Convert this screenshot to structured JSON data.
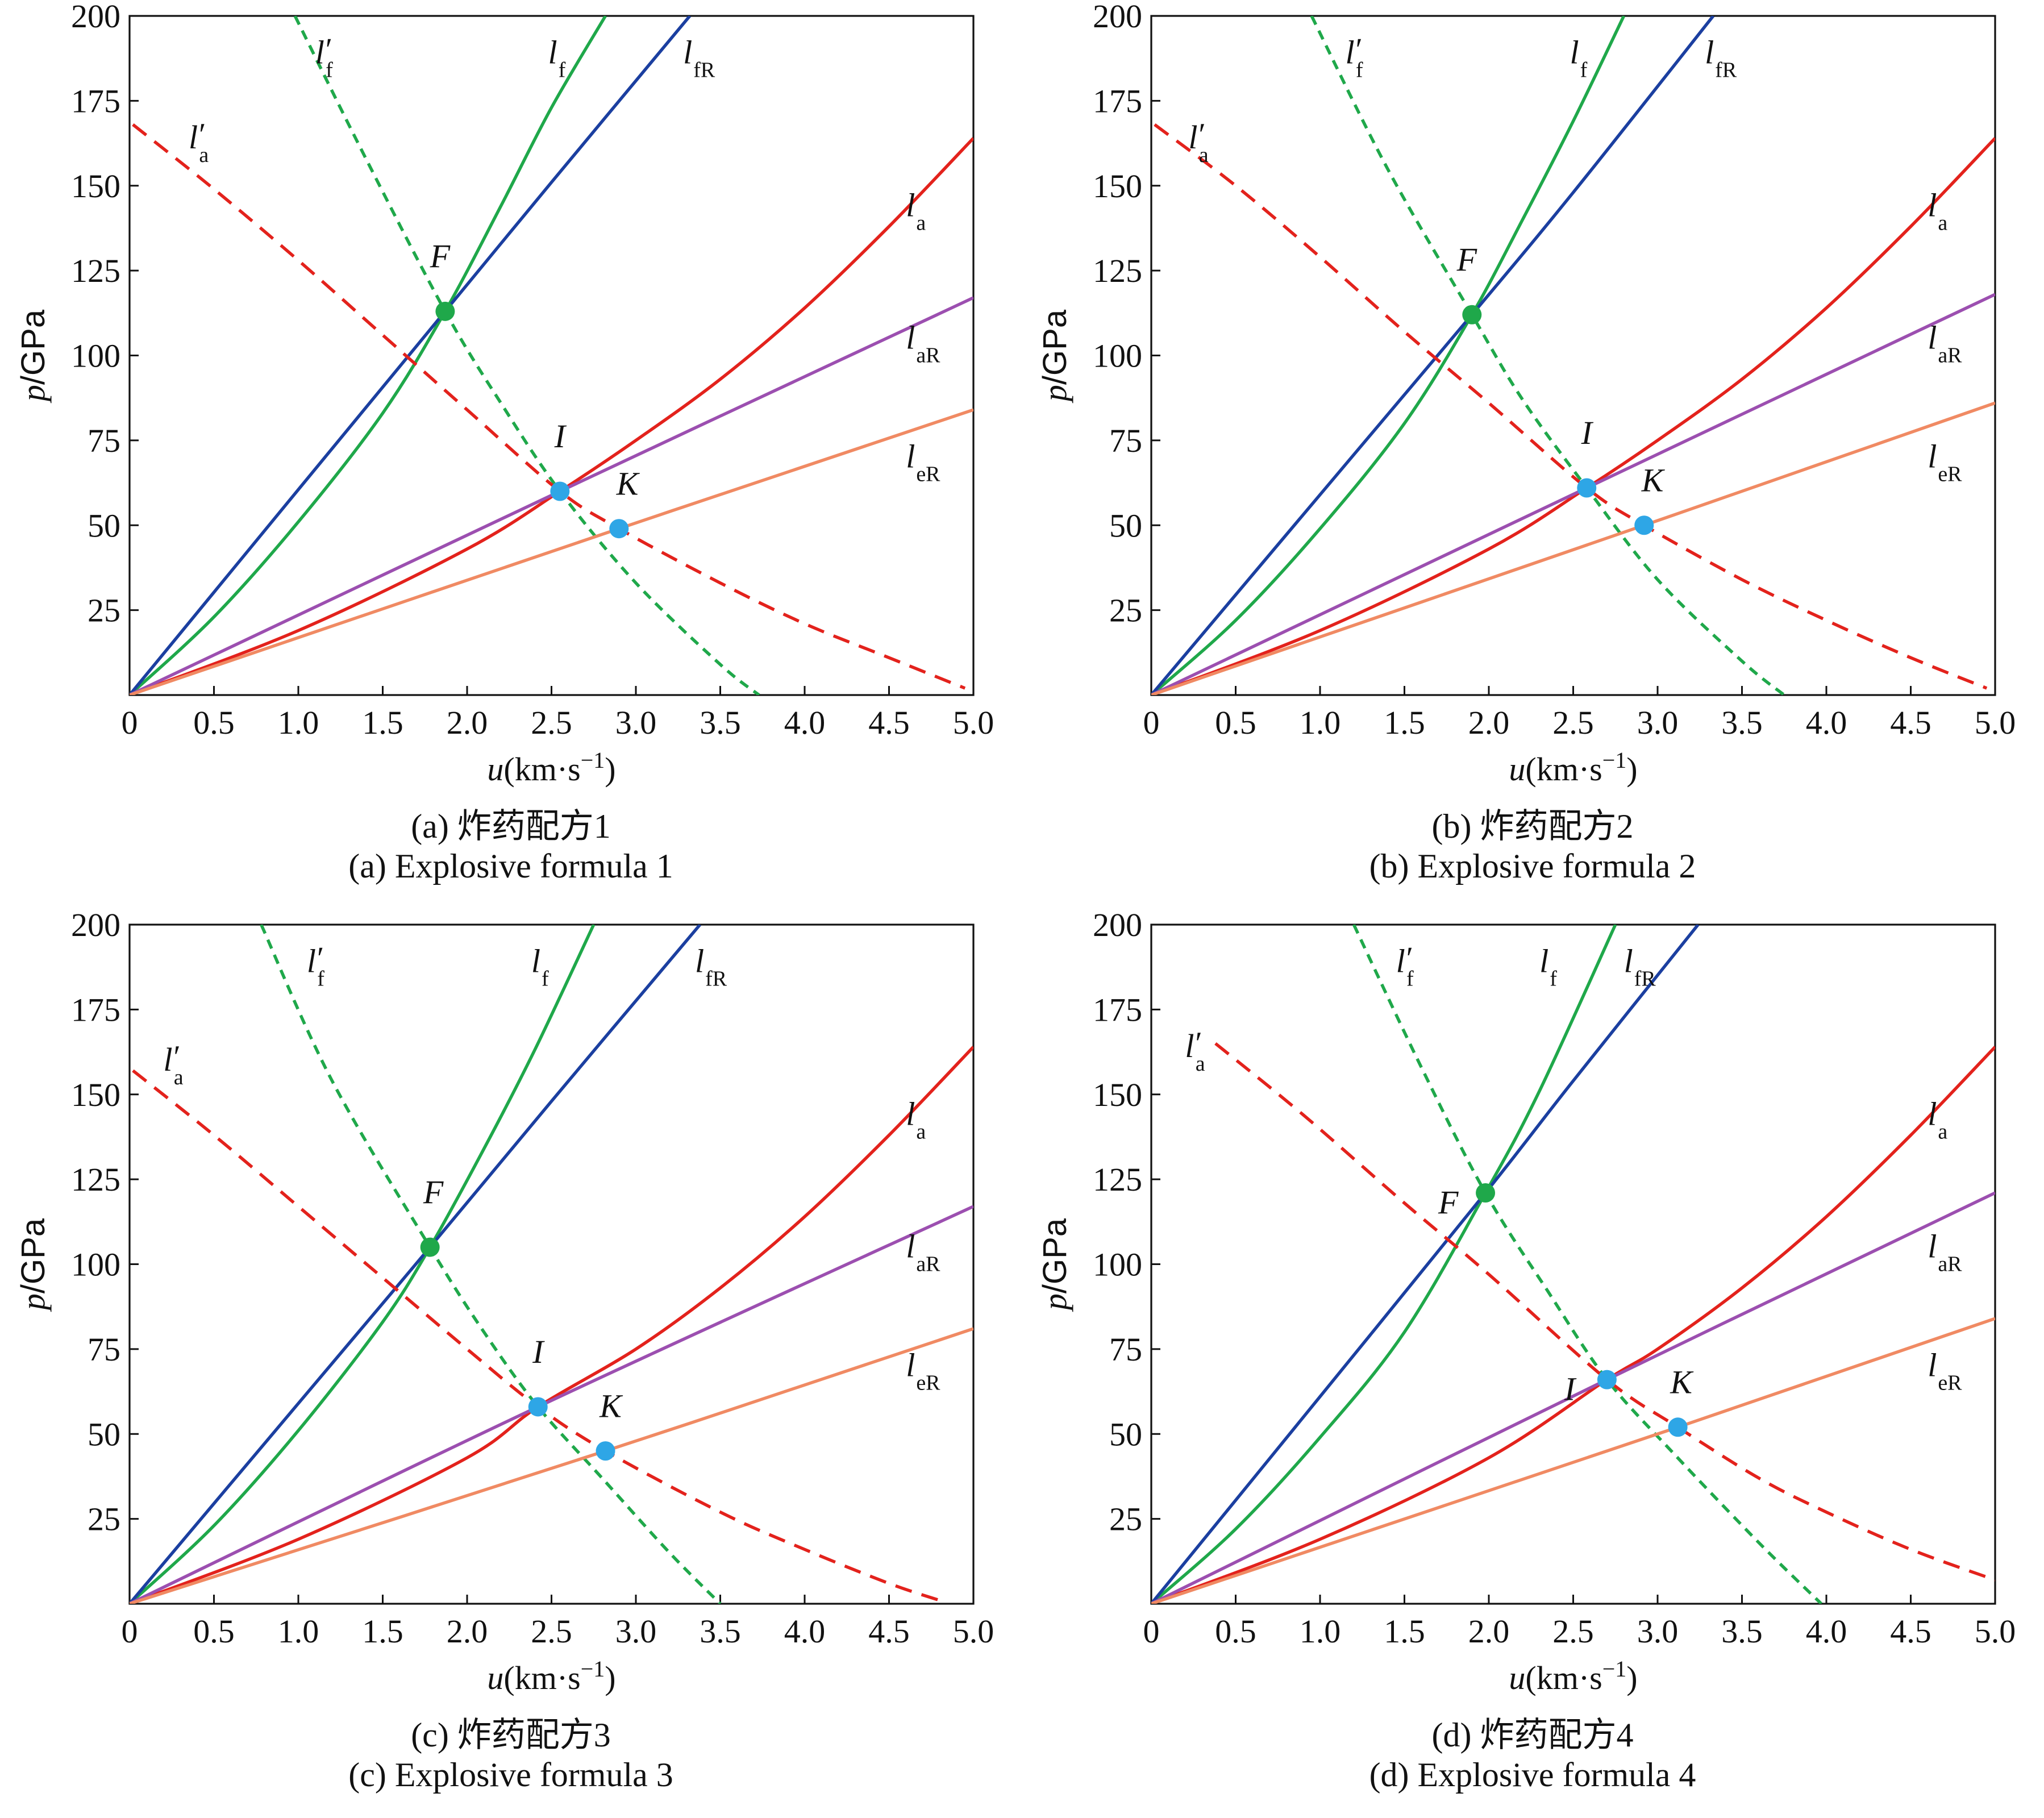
{
  "caption_prefixes": [
    "(a)",
    "(b)",
    "(c)",
    "(d)"
  ],
  "colors": {
    "lf": "#1fa84a",
    "lf_prime": "#1fa84a",
    "lfR": "#1b3fa0",
    "la": "#e3221c",
    "la_prime": "#e3221c",
    "laR": "#9c4fb0",
    "leR": "#f08a63",
    "F_point": "#1fa84a",
    "IK_point": "#2ea6e6"
  },
  "chart_data": [
    {
      "type": "line",
      "caption_cn": "(a) 炸药配方1",
      "caption_en": "(a) Explosive formula 1",
      "xlabel": "u(km·s⁻¹)",
      "xlabel_var": "u",
      "xlabel_unit": "(km·s",
      "xlabel_exp": "−1",
      "ylabel": "p/GPa",
      "ylabel_var": "p",
      "ylabel_unit": "/GPa",
      "xlim": [
        0,
        5.0
      ],
      "ylim": [
        0,
        200
      ],
      "x_ticks": [
        "0",
        "0.5",
        "1.0",
        "1.5",
        "2.0",
        "2.5",
        "3.0",
        "3.5",
        "4.0",
        "4.5",
        "5.0"
      ],
      "y_ticks": [
        "25",
        "50",
        "75",
        "100",
        "125",
        "150",
        "175",
        "200"
      ],
      "grid": false,
      "series": [
        {
          "name": "lf",
          "label_base": "l",
          "label_sub": "f",
          "style": "solid",
          "x": [
            0,
            0.5,
            1.0,
            1.5,
            1.87,
            2.2,
            2.5,
            2.82
          ],
          "y": [
            0,
            23,
            51,
            83,
            113,
            144,
            173,
            200
          ]
        },
        {
          "name": "lfR",
          "label_base": "l",
          "label_sub": "fR",
          "style": "solid",
          "x": [
            0,
            1.0,
            1.87,
            2.5,
            3.32
          ],
          "y": [
            0,
            60.5,
            113,
            151,
            200
          ]
        },
        {
          "name": "lf'",
          "label_base": "l",
          "label_sub": "f",
          "prime": true,
          "style": "dashed",
          "x": [
            0.98,
            1.4,
            1.87,
            2.2,
            2.55,
            3.0,
            3.5,
            3.73
          ],
          "y": [
            200,
            158,
            113,
            86,
            60,
            33,
            9,
            0
          ]
        },
        {
          "name": "la",
          "label_base": "l",
          "label_sub": "a",
          "style": "solid",
          "x": [
            0,
            1.0,
            2.0,
            2.55,
            3.0,
            3.5,
            4.0,
            4.5,
            5.0
          ],
          "y": [
            0,
            19,
            43,
            60,
            75,
            93,
            114,
            138,
            164
          ]
        },
        {
          "name": "la'",
          "label_base": "l",
          "label_sub": "a",
          "prime": true,
          "style": "dashed",
          "x": [
            0.02,
            0.5,
            1.0,
            1.5,
            2.0,
            2.55,
            2.9,
            3.5,
            4.0,
            4.5,
            4.95
          ],
          "y": [
            168,
            149,
            128,
            106,
            84,
            60,
            49,
            33,
            21,
            11,
            2
          ]
        },
        {
          "name": "laR",
          "label_base": "l",
          "label_sub": "aR",
          "style": "solid",
          "x": [
            0,
            2.55,
            5.0
          ],
          "y": [
            0,
            60,
            117
          ]
        },
        {
          "name": "leR",
          "label_base": "l",
          "label_sub": "eR",
          "style": "solid",
          "x": [
            0,
            2.9,
            5.0
          ],
          "y": [
            0,
            49,
            84
          ]
        }
      ],
      "series_label_positions": [
        {
          "series": "lf'",
          "x": 1.1,
          "y": 186
        },
        {
          "series": "lf",
          "x": 2.48,
          "y": 186
        },
        {
          "series": "lfR",
          "x": 3.28,
          "y": 186
        },
        {
          "series": "la'",
          "x": 0.35,
          "y": 161
        },
        {
          "series": "la",
          "x": 4.6,
          "y": 141
        },
        {
          "series": "laR",
          "x": 4.6,
          "y": 102
        },
        {
          "series": "leR",
          "x": 4.6,
          "y": 67
        }
      ],
      "points": [
        {
          "label": "F",
          "x": 1.87,
          "y": 113,
          "color": "F_point",
          "label_dx": -0.03,
          "label_dy": 13
        },
        {
          "label": "I",
          "x": 2.55,
          "y": 60,
          "color": "IK_point",
          "label_dx": 0.0,
          "label_dy": 13
        },
        {
          "label": "K",
          "x": 2.9,
          "y": 49,
          "color": "IK_point",
          "label_dx": 0.05,
          "label_dy": 10
        }
      ]
    },
    {
      "type": "line",
      "caption_cn": "(b) 炸药配方2",
      "caption_en": "(b) Explosive formula 2",
      "xlabel": "u(km·s⁻¹)",
      "xlabel_var": "u",
      "xlabel_unit": "(km·s",
      "xlabel_exp": "−1",
      "ylabel": "p/GPa",
      "ylabel_var": "p",
      "ylabel_unit": "/GPa",
      "xlim": [
        0,
        5.0
      ],
      "ylim": [
        0,
        200
      ],
      "x_ticks": [
        "0",
        "0.5",
        "1.0",
        "1.5",
        "2.0",
        "2.5",
        "3.0",
        "3.5",
        "4.0",
        "4.5",
        "5.0"
      ],
      "y_ticks": [
        "25",
        "50",
        "75",
        "100",
        "125",
        "150",
        "175",
        "200"
      ],
      "grid": false,
      "series": [
        {
          "name": "lf",
          "label_base": "l",
          "label_sub": "f",
          "style": "solid",
          "x": [
            0,
            0.5,
            1.0,
            1.5,
            1.9,
            2.2,
            2.5,
            2.8
          ],
          "y": [
            0,
            22,
            49,
            80,
            112,
            140,
            169,
            200
          ]
        },
        {
          "name": "lfR",
          "label_base": "l",
          "label_sub": "fR",
          "style": "solid",
          "x": [
            0,
            1.0,
            1.9,
            2.5,
            3.33
          ],
          "y": [
            0,
            59,
            112,
            148,
            200
          ]
        },
        {
          "name": "lf'",
          "label_base": "l",
          "label_sub": "f",
          "prime": true,
          "style": "dashed",
          "x": [
            0.95,
            1.4,
            1.9,
            2.2,
            2.58,
            3.0,
            3.5,
            3.75
          ],
          "y": [
            200,
            155,
            112,
            87,
            61,
            34,
            10,
            0
          ]
        },
        {
          "name": "la",
          "label_base": "l",
          "label_sub": "a",
          "style": "solid",
          "x": [
            0,
            1.0,
            2.0,
            2.58,
            3.0,
            3.5,
            4.0,
            4.5,
            5.0
          ],
          "y": [
            0,
            19,
            43,
            61,
            75,
            93,
            114,
            138,
            164
          ]
        },
        {
          "name": "la'",
          "label_base": "l",
          "label_sub": "a",
          "prime": true,
          "style": "dashed",
          "x": [
            0.02,
            0.5,
            1.0,
            1.5,
            2.0,
            2.58,
            2.92,
            3.5,
            4.0,
            4.5,
            4.95
          ],
          "y": [
            168,
            150,
            129,
            107,
            86,
            61,
            50,
            34,
            22,
            11,
            2
          ]
        },
        {
          "name": "laR",
          "label_base": "l",
          "label_sub": "aR",
          "style": "solid",
          "x": [
            0,
            2.58,
            5.0
          ],
          "y": [
            0,
            61,
            118
          ]
        },
        {
          "name": "leR",
          "label_base": "l",
          "label_sub": "eR",
          "style": "solid",
          "x": [
            0,
            2.92,
            5.0
          ],
          "y": [
            0,
            50,
            86
          ]
        }
      ],
      "series_label_positions": [
        {
          "series": "lf'",
          "x": 1.15,
          "y": 186
        },
        {
          "series": "lf",
          "x": 2.48,
          "y": 186
        },
        {
          "series": "lfR",
          "x": 3.28,
          "y": 186
        },
        {
          "series": "la'",
          "x": 0.22,
          "y": 161
        },
        {
          "series": "la",
          "x": 4.6,
          "y": 141
        },
        {
          "series": "laR",
          "x": 4.6,
          "y": 102
        },
        {
          "series": "leR",
          "x": 4.6,
          "y": 67
        }
      ],
      "points": [
        {
          "label": "F",
          "x": 1.9,
          "y": 112,
          "color": "F_point",
          "label_dx": -0.03,
          "label_dy": 13
        },
        {
          "label": "I",
          "x": 2.58,
          "y": 61,
          "color": "IK_point",
          "label_dx": 0.0,
          "label_dy": 13
        },
        {
          "label": "K",
          "x": 2.92,
          "y": 50,
          "color": "IK_point",
          "label_dx": 0.05,
          "label_dy": 10
        }
      ]
    },
    {
      "type": "line",
      "caption_cn": "(c) 炸药配方3",
      "caption_en": "(c) Explosive formula 3",
      "xlabel": "u(km·s⁻¹)",
      "xlabel_var": "u",
      "xlabel_unit": "(km·s",
      "xlabel_exp": "−1",
      "ylabel": "p/GPa",
      "ylabel_var": "p",
      "ylabel_unit": "/GPa",
      "xlim": [
        0,
        5.0
      ],
      "ylim": [
        0,
        200
      ],
      "x_ticks": [
        "0",
        "0.5",
        "1.0",
        "1.5",
        "2.0",
        "2.5",
        "3.0",
        "3.5",
        "4.0",
        "4.5",
        "5.0"
      ],
      "y_ticks": [
        "25",
        "50",
        "75",
        "100",
        "125",
        "150",
        "175",
        "200"
      ],
      "grid": false,
      "series": [
        {
          "name": "lf",
          "label_base": "l",
          "label_sub": "f",
          "style": "solid",
          "x": [
            0,
            0.5,
            1.0,
            1.5,
            1.78,
            2.1,
            2.4,
            2.75
          ],
          "y": [
            0,
            23,
            51,
            83,
            105,
            134,
            163,
            200
          ]
        },
        {
          "name": "lfR",
          "label_base": "l",
          "label_sub": "fR",
          "style": "solid",
          "x": [
            0,
            1.0,
            1.78,
            2.5,
            3.38
          ],
          "y": [
            0,
            59,
            105,
            148,
            200
          ]
        },
        {
          "name": "lf'",
          "label_base": "l",
          "label_sub": "f",
          "prime": true,
          "style": "dashed",
          "x": [
            0.78,
            1.2,
            1.78,
            2.1,
            2.42,
            2.8,
            3.2,
            3.5
          ],
          "y": [
            200,
            154,
            105,
            80,
            58,
            37,
            15,
            0
          ]
        },
        {
          "name": "la",
          "label_base": "l",
          "label_sub": "a",
          "style": "solid",
          "x": [
            0,
            1.0,
            2.0,
            2.42,
            3.0,
            3.5,
            4.0,
            4.5,
            5.0
          ],
          "y": [
            0,
            19,
            43,
            58,
            75,
            93,
            114,
            138,
            164
          ]
        },
        {
          "name": "la'",
          "label_base": "l",
          "label_sub": "a",
          "prime": true,
          "style": "dashed",
          "x": [
            0.02,
            0.5,
            1.0,
            1.5,
            2.0,
            2.42,
            2.82,
            3.5,
            4.0,
            4.5,
            4.8
          ],
          "y": [
            157,
            138,
            117,
            96,
            75,
            58,
            45,
            27,
            16,
            6,
            1
          ]
        },
        {
          "name": "laR",
          "label_base": "l",
          "label_sub": "aR",
          "style": "solid",
          "x": [
            0,
            2.42,
            5.0
          ],
          "y": [
            0,
            58,
            117
          ]
        },
        {
          "name": "leR",
          "label_base": "l",
          "label_sub": "eR",
          "style": "solid",
          "x": [
            0,
            2.82,
            5.0
          ],
          "y": [
            0,
            45,
            81
          ]
        }
      ],
      "series_label_positions": [
        {
          "series": "lf'",
          "x": 1.05,
          "y": 186
        },
        {
          "series": "lf",
          "x": 2.38,
          "y": 186
        },
        {
          "series": "lfR",
          "x": 3.35,
          "y": 186
        },
        {
          "series": "la'",
          "x": 0.2,
          "y": 157
        },
        {
          "series": "la",
          "x": 4.6,
          "y": 141
        },
        {
          "series": "laR",
          "x": 4.6,
          "y": 102
        },
        {
          "series": "leR",
          "x": 4.6,
          "y": 67
        }
      ],
      "points": [
        {
          "label": "F",
          "x": 1.78,
          "y": 105,
          "color": "F_point",
          "label_dx": 0.02,
          "label_dy": 13
        },
        {
          "label": "I",
          "x": 2.42,
          "y": 58,
          "color": "IK_point",
          "label_dx": 0.0,
          "label_dy": 13
        },
        {
          "label": "K",
          "x": 2.82,
          "y": 45,
          "color": "IK_point",
          "label_dx": 0.03,
          "label_dy": 10
        }
      ]
    },
    {
      "type": "line",
      "caption_cn": "(d) 炸药配方4",
      "caption_en": "(d) Explosive formula 4",
      "xlabel": "u(km·s⁻¹)",
      "xlabel_var": "u",
      "xlabel_unit": "(km·s",
      "xlabel_exp": "−1",
      "ylabel": "p/GPa",
      "ylabel_var": "p",
      "ylabel_unit": "/GPa",
      "xlim": [
        0,
        5.0
      ],
      "ylim": [
        0,
        200
      ],
      "x_ticks": [
        "0",
        "0.5",
        "1.0",
        "1.5",
        "2.0",
        "2.5",
        "3.0",
        "3.5",
        "4.0",
        "4.5",
        "5.0"
      ],
      "y_ticks": [
        "25",
        "50",
        "75",
        "100",
        "125",
        "150",
        "175",
        "200"
      ],
      "grid": false,
      "series": [
        {
          "name": "lf",
          "label_base": "l",
          "label_sub": "f",
          "style": "solid",
          "x": [
            0,
            0.5,
            1.0,
            1.5,
            1.98,
            2.3,
            2.75
          ],
          "y": [
            0,
            22,
            49,
            80,
            121,
            151,
            200
          ]
        },
        {
          "name": "lfR",
          "label_base": "l",
          "label_sub": "fR",
          "style": "solid",
          "x": [
            0,
            1.0,
            1.98,
            2.5,
            3.24
          ],
          "y": [
            0,
            61,
            121,
            154,
            200
          ]
        },
        {
          "name": "lf'",
          "label_base": "l",
          "label_sub": "f",
          "prime": true,
          "style": "dashed",
          "x": [
            1.2,
            1.6,
            1.98,
            2.35,
            2.7,
            3.1,
            3.6,
            3.97
          ],
          "y": [
            200,
            158,
            121,
            92,
            66,
            44,
            18,
            0
          ]
        },
        {
          "name": "la",
          "label_base": "l",
          "label_sub": "a",
          "style": "solid",
          "x": [
            0,
            1.0,
            2.0,
            2.7,
            3.0,
            3.5,
            4.0,
            4.5,
            5.0
          ],
          "y": [
            0,
            19,
            43,
            66,
            75,
            93,
            114,
            138,
            164
          ]
        },
        {
          "name": "la'",
          "label_base": "l",
          "label_sub": "a",
          "prime": true,
          "style": "dashed",
          "x": [
            0.38,
            0.9,
            1.5,
            2.0,
            2.7,
            3.12,
            3.6,
            4.0,
            4.5,
            5.0
          ],
          "y": [
            165,
            144,
            118,
            97,
            66,
            52,
            37,
            27,
            16,
            7
          ]
        },
        {
          "name": "laR",
          "label_base": "l",
          "label_sub": "aR",
          "style": "solid",
          "x": [
            0,
            2.7,
            5.0
          ],
          "y": [
            0,
            66,
            121
          ]
        },
        {
          "name": "leR",
          "label_base": "l",
          "label_sub": "eR",
          "style": "solid",
          "x": [
            0,
            3.12,
            5.0
          ],
          "y": [
            0,
            52,
            84
          ]
        }
      ],
      "series_label_positions": [
        {
          "series": "lf'",
          "x": 1.45,
          "y": 186
        },
        {
          "series": "lf",
          "x": 2.3,
          "y": 186
        },
        {
          "series": "lfR",
          "x": 2.8,
          "y": 186
        },
        {
          "series": "la'",
          "x": 0.2,
          "y": 161
        },
        {
          "series": "la",
          "x": 4.6,
          "y": 141
        },
        {
          "series": "laR",
          "x": 4.6,
          "y": 102
        },
        {
          "series": "leR",
          "x": 4.6,
          "y": 67
        }
      ],
      "points": [
        {
          "label": "F",
          "x": 1.98,
          "y": 121,
          "color": "F_point",
          "label_dx": -0.22,
          "label_dy": -6
        },
        {
          "label": "I",
          "x": 2.7,
          "y": 66,
          "color": "IK_point",
          "label_dx": -0.22,
          "label_dy": -6
        },
        {
          "label": "K",
          "x": 3.12,
          "y": 52,
          "color": "IK_point",
          "label_dx": 0.02,
          "label_dy": 10
        }
      ]
    }
  ]
}
